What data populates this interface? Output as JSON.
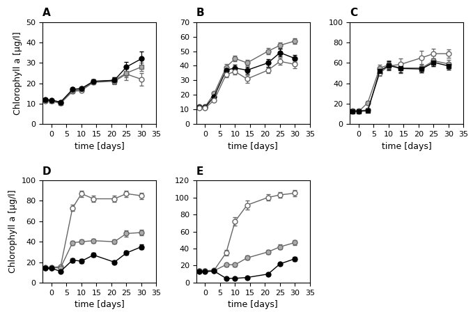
{
  "chart_data": [
    {
      "type": "line",
      "title": "A",
      "xlabel": "time [days]",
      "ylabel": "Chlorophyll a [µg/l]",
      "x": [
        -2,
        0,
        3,
        7,
        10,
        14,
        21,
        25,
        30
      ],
      "xlim": [
        -3,
        35
      ],
      "xticks": [
        0,
        5,
        10,
        15,
        20,
        25,
        30,
        35
      ],
      "ylim": [
        0,
        50
      ],
      "yticks": [
        0,
        10,
        20,
        30,
        40,
        50
      ],
      "series": [
        {
          "color": "white",
          "marker": "circle",
          "values": [
            11.5,
            11.2,
            10.2,
            16.0,
            16.5,
            20.5,
            21.0,
            24.5,
            22.0
          ],
          "yerr": [
            0.3,
            0.3,
            0.5,
            0.8,
            0.8,
            1.0,
            1.5,
            3.0,
            3.0
          ]
        },
        {
          "color": "#aaaaaa",
          "marker": "square",
          "values": [
            11.8,
            11.5,
            10.5,
            16.5,
            17.0,
            20.8,
            21.5,
            25.0,
            28.0
          ],
          "yerr": [
            0.3,
            0.3,
            0.5,
            0.8,
            0.8,
            1.0,
            1.5,
            2.0,
            2.0
          ]
        },
        {
          "color": "black",
          "marker": "circle",
          "values": [
            12.0,
            11.8,
            10.8,
            17.0,
            17.5,
            21.0,
            21.5,
            28.0,
            32.0
          ],
          "yerr": [
            0.3,
            0.3,
            0.5,
            0.8,
            0.8,
            1.0,
            1.5,
            2.5,
            3.5
          ]
        }
      ]
    },
    {
      "type": "line",
      "title": "B",
      "xlabel": "time [days]",
      "x": [
        -2,
        0,
        3,
        7,
        10,
        14,
        21,
        25,
        30
      ],
      "xlim": [
        -3,
        35
      ],
      "xticks": [
        0,
        5,
        10,
        15,
        20,
        25,
        30,
        35
      ],
      "ylim": [
        0,
        70
      ],
      "yticks": [
        0,
        10,
        20,
        30,
        40,
        50,
        60,
        70
      ],
      "series": [
        {
          "color": "#aaaaaa",
          "marker": "circle",
          "values": [
            12.0,
            12.0,
            21.0,
            39.0,
            45.0,
            42.0,
            50.0,
            54.0,
            57.0
          ],
          "yerr": [
            0.3,
            0.5,
            1.0,
            2.0,
            2.0,
            2.0,
            2.0,
            2.0,
            2.0
          ]
        },
        {
          "color": "black",
          "marker": "circle",
          "values": [
            11.5,
            11.5,
            19.0,
            37.0,
            38.5,
            37.0,
            42.0,
            49.0,
            45.0
          ],
          "yerr": [
            0.3,
            0.5,
            1.0,
            2.0,
            2.0,
            2.5,
            2.5,
            2.5,
            2.5
          ]
        },
        {
          "color": "white",
          "marker": "circle",
          "values": [
            11.0,
            11.0,
            16.5,
            34.0,
            36.0,
            31.0,
            37.0,
            43.0,
            41.0
          ],
          "yerr": [
            0.3,
            0.5,
            1.0,
            2.0,
            2.0,
            2.5,
            2.0,
            2.5,
            2.5
          ]
        }
      ]
    },
    {
      "type": "line",
      "title": "C",
      "xlabel": "time [days]",
      "x": [
        -2,
        0,
        3,
        7,
        10,
        14,
        21,
        25,
        30
      ],
      "xlim": [
        -3,
        35
      ],
      "xticks": [
        0,
        5,
        10,
        15,
        20,
        25,
        30,
        35
      ],
      "ylim": [
        0,
        100
      ],
      "yticks": [
        0,
        20,
        40,
        60,
        80,
        100
      ],
      "series": [
        {
          "color": "#aaaaaa",
          "marker": "circle",
          "values": [
            12.5,
            12.5,
            21.0,
            55.0,
            58.0,
            55.0,
            55.0,
            62.0,
            59.0
          ],
          "yerr": [
            0.5,
            0.5,
            1.5,
            3.0,
            4.0,
            5.0,
            4.0,
            5.0,
            4.0
          ]
        },
        {
          "color": "white",
          "marker": "circle",
          "values": [
            13.0,
            13.0,
            14.0,
            50.0,
            57.0,
            58.5,
            65.0,
            69.0,
            69.0
          ],
          "yerr": [
            0.5,
            0.5,
            1.0,
            3.0,
            4.0,
            6.0,
            7.0,
            5.0,
            4.0
          ]
        },
        {
          "color": "black",
          "marker": "square",
          "values": [
            12.8,
            12.8,
            13.0,
            52.0,
            57.5,
            54.5,
            54.0,
            60.5,
            57.0
          ],
          "yerr": [
            0.5,
            0.5,
            1.0,
            3.0,
            4.0,
            4.0,
            3.0,
            4.0,
            3.5
          ]
        }
      ]
    },
    {
      "type": "line",
      "title": "D",
      "xlabel": "time [days]",
      "ylabel": "Chlorophyll a [µg/l]",
      "x": [
        -2,
        0,
        3,
        7,
        10,
        14,
        21,
        25,
        30
      ],
      "xlim": [
        -3,
        35
      ],
      "xticks": [
        0,
        5,
        10,
        15,
        20,
        25,
        30,
        35
      ],
      "ylim": [
        0,
        100
      ],
      "yticks": [
        0,
        20,
        40,
        60,
        80,
        100
      ],
      "series": [
        {
          "color": "white",
          "marker": "circle",
          "values": [
            15.0,
            15.0,
            15.5,
            73.0,
            87.0,
            82.0,
            82.0,
            87.0,
            85.0
          ],
          "yerr": [
            0.5,
            0.5,
            0.5,
            3.0,
            3.0,
            3.0,
            3.0,
            3.0,
            3.0
          ]
        },
        {
          "color": "#aaaaaa",
          "marker": "circle",
          "values": [
            14.5,
            14.5,
            14.5,
            39.0,
            40.0,
            41.0,
            40.0,
            48.0,
            49.0
          ],
          "yerr": [
            0.5,
            0.5,
            0.5,
            2.0,
            2.0,
            2.0,
            2.0,
            3.0,
            3.0
          ]
        },
        {
          "color": "black",
          "marker": "circle",
          "values": [
            14.0,
            14.0,
            11.0,
            22.0,
            21.0,
            27.0,
            20.0,
            29.0,
            35.0
          ],
          "yerr": [
            0.5,
            0.5,
            0.5,
            2.0,
            2.0,
            2.0,
            2.0,
            2.0,
            2.5
          ]
        }
      ]
    },
    {
      "type": "line",
      "title": "E",
      "xlabel": "time [days]",
      "x": [
        -2,
        0,
        3,
        7,
        10,
        14,
        21,
        25,
        30
      ],
      "xlim": [
        -3,
        35
      ],
      "xticks": [
        0,
        5,
        10,
        15,
        20,
        25,
        30,
        35
      ],
      "ylim": [
        0,
        120
      ],
      "yticks": [
        0,
        20,
        40,
        60,
        80,
        100,
        120
      ],
      "series": [
        {
          "color": "white",
          "marker": "circle",
          "values": [
            14.0,
            14.0,
            14.5,
            35.0,
            72.0,
            91.0,
            100.0,
            103.0,
            105.0
          ],
          "yerr": [
            0.5,
            0.5,
            0.5,
            3.0,
            5.0,
            5.0,
            4.0,
            3.5,
            3.5
          ]
        },
        {
          "color": "#aaaaaa",
          "marker": "circle",
          "values": [
            13.5,
            13.5,
            14.0,
            21.0,
            21.0,
            29.0,
            36.0,
            42.0,
            47.0
          ],
          "yerr": [
            0.5,
            0.5,
            0.5,
            2.0,
            2.0,
            2.5,
            2.5,
            3.0,
            3.0
          ]
        },
        {
          "color": "black",
          "marker": "circle",
          "values": [
            13.0,
            13.0,
            13.5,
            5.0,
            5.0,
            6.0,
            10.0,
            22.0,
            28.0
          ],
          "yerr": [
            0.5,
            0.5,
            0.5,
            1.0,
            1.0,
            1.0,
            1.5,
            2.0,
            2.5
          ]
        }
      ]
    }
  ]
}
